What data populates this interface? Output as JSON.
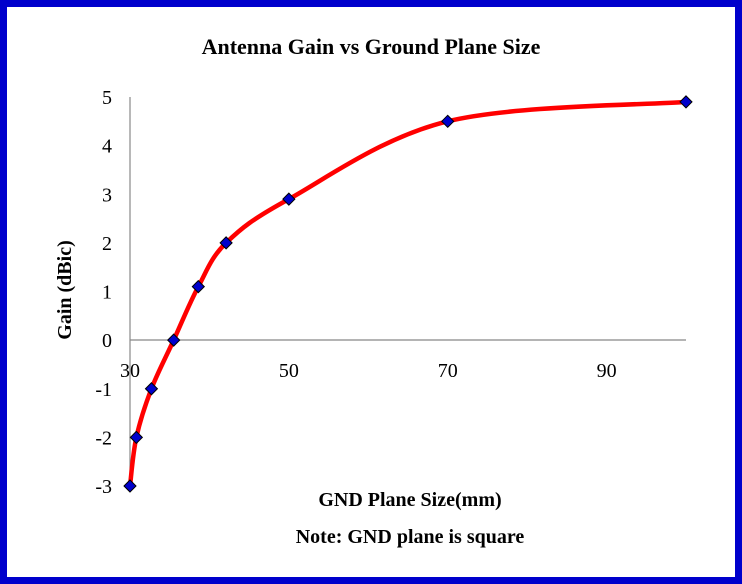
{
  "chart_data": {
    "type": "line",
    "title": "Antenna Gain vs Ground Plane Size",
    "xlabel": "GND Plane Size(mm)",
    "xlabel_note": "Note: GND plane is square",
    "ylabel": "Gain (dBic)",
    "xlim": [
      30,
      100
    ],
    "ylim": [
      -3,
      5
    ],
    "x_ticks": [
      30,
      50,
      70,
      90
    ],
    "y_ticks": [
      5,
      4,
      3,
      2,
      1,
      0,
      -1,
      -2,
      -3
    ],
    "grid": false,
    "legend": "none",
    "line_color": "#ff0000",
    "marker_color": "#0000cc",
    "frame_color": "#0000cc",
    "series": [
      {
        "x": [
          30,
          30.8,
          32.7,
          35.5,
          38.6,
          42.1,
          50,
          70,
          100
        ],
        "y": [
          -3,
          -2,
          -1,
          0,
          1.1,
          2,
          2.9,
          4.5,
          4.9
        ]
      }
    ]
  }
}
